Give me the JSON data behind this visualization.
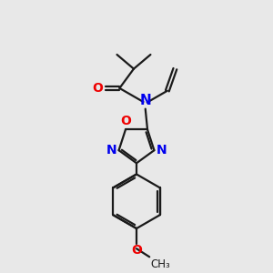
{
  "bg_color": "#e8e8e8",
  "bond_color": "#1a1a1a",
  "N_color": "#0000ee",
  "O_color": "#ee0000",
  "line_width": 1.6,
  "font_size": 10,
  "fig_size": [
    3.0,
    3.0
  ],
  "dpi": 100,
  "xlim": [
    0,
    10
  ],
  "ylim": [
    0,
    10
  ]
}
